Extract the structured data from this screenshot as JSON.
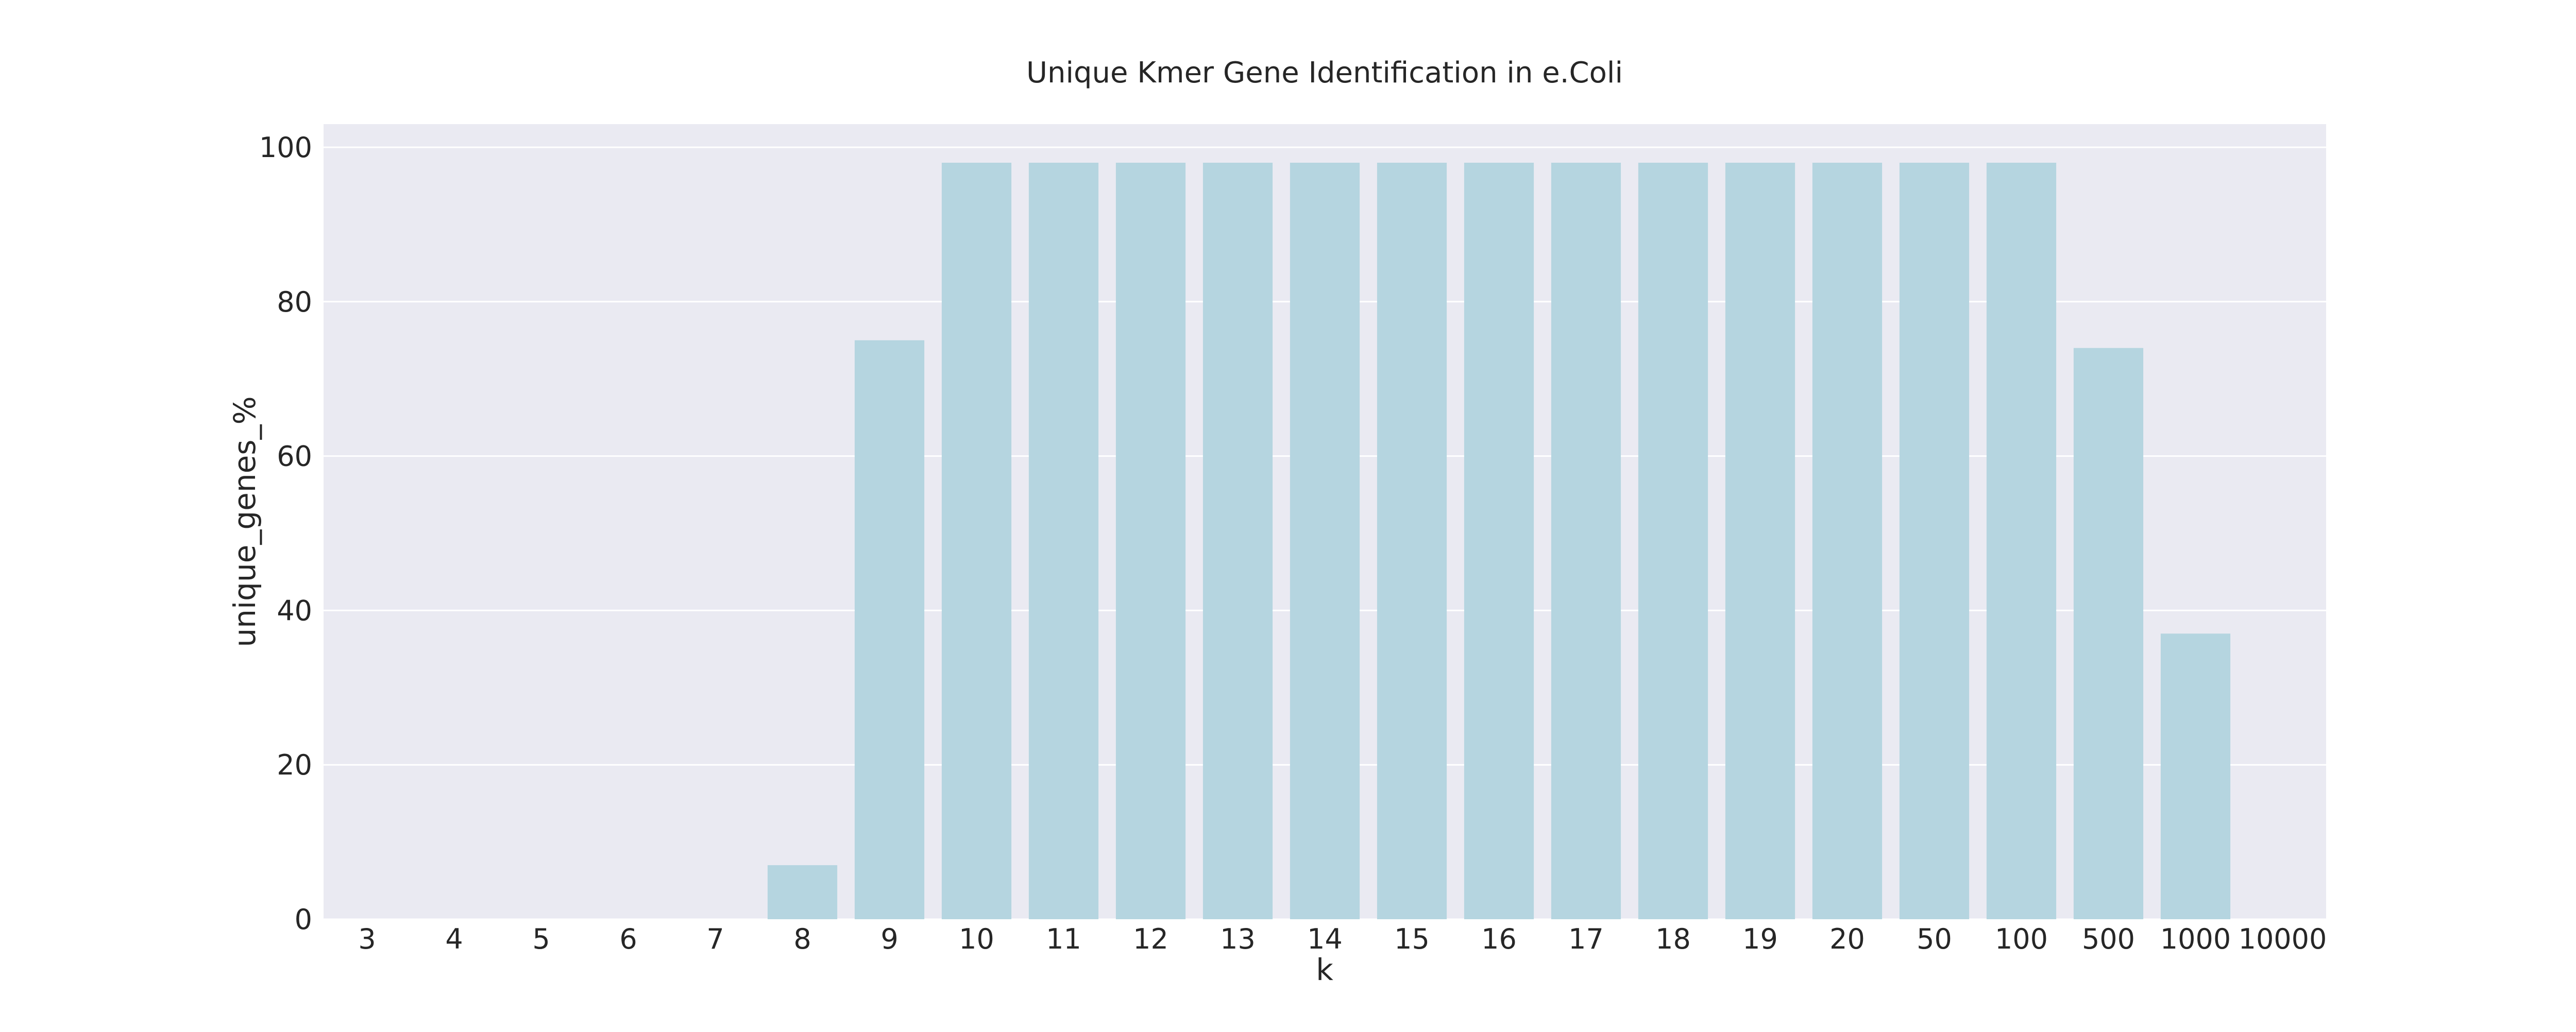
{
  "chart_data": {
    "type": "bar",
    "title": "Unique Kmer Gene Identification in e.Coli",
    "xlabel": "k",
    "ylabel": "unique_genes_%",
    "categories": [
      "3",
      "4",
      "5",
      "6",
      "7",
      "8",
      "9",
      "10",
      "11",
      "12",
      "13",
      "14",
      "15",
      "16",
      "17",
      "18",
      "19",
      "20",
      "50",
      "100",
      "500",
      "1000",
      "10000"
    ],
    "values": [
      0,
      0,
      0,
      0,
      0,
      7,
      75,
      98,
      98,
      98,
      98,
      98,
      98,
      98,
      98,
      98,
      98,
      98,
      98,
      98,
      74,
      37,
      0
    ],
    "ylim": [
      0,
      103
    ],
    "yticks": [
      0,
      20,
      40,
      60,
      80,
      100
    ],
    "grid": true,
    "colors": {
      "bar": "#b5d5e0",
      "plot_background": "#eaeaf2",
      "grid": "#ffffff",
      "text": "#262626"
    }
  }
}
